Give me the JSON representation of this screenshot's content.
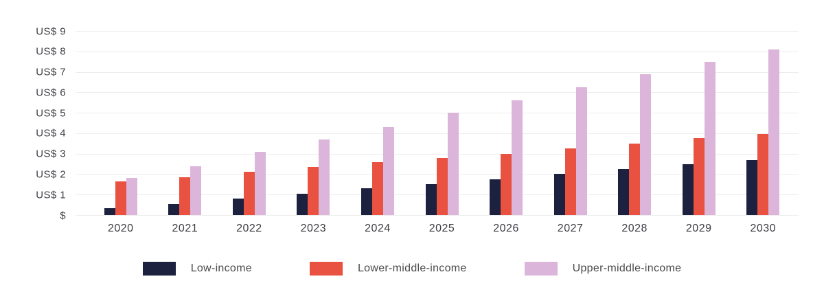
{
  "chart_data": {
    "type": "bar",
    "title": "",
    "xlabel": "",
    "ylabel": "US$",
    "ylim": [
      0,
      9
    ],
    "grid": true,
    "legend_position": "bottom",
    "categories": [
      "2020",
      "2021",
      "2022",
      "2023",
      "2024",
      "2025",
      "2026",
      "2027",
      "2028",
      "2029",
      "2030"
    ],
    "series": [
      {
        "name": "Low-income",
        "color": "#1c213f",
        "values": [
          0.35,
          0.55,
          0.8,
          1.05,
          1.3,
          1.5,
          1.75,
          2.0,
          2.25,
          2.5,
          2.7
        ]
      },
      {
        "name": "Lower-middle-income",
        "color": "#e95140",
        "values": [
          1.65,
          1.85,
          2.1,
          2.35,
          2.6,
          2.8,
          3.0,
          3.25,
          3.5,
          3.75,
          3.95
        ]
      },
      {
        "name": "Upper-middle-income",
        "color": "#dcb6da",
        "values": [
          1.8,
          2.4,
          3.1,
          3.7,
          4.3,
          5.0,
          5.6,
          6.25,
          6.9,
          7.5,
          8.1
        ]
      }
    ],
    "yticks": [
      {
        "value": 9,
        "label": "US$ 9"
      },
      {
        "value": 8,
        "label": "US$ 8"
      },
      {
        "value": 7,
        "label": "US$ 7"
      },
      {
        "value": 6,
        "label": "US$ 6"
      },
      {
        "value": 5,
        "label": "US$ 5"
      },
      {
        "value": 4,
        "label": "US$ 4"
      },
      {
        "value": 3,
        "label": "US$ 3"
      },
      {
        "value": 2,
        "label": "US$ 2"
      },
      {
        "value": 1,
        "label": "US$ 1"
      },
      {
        "value": 0,
        "label": "$"
      }
    ]
  },
  "colors": {
    "background": "#ffffff",
    "gridline": "#ededed",
    "axis_text": "#3f3f46",
    "legend_text": "#4a4a4a"
  }
}
